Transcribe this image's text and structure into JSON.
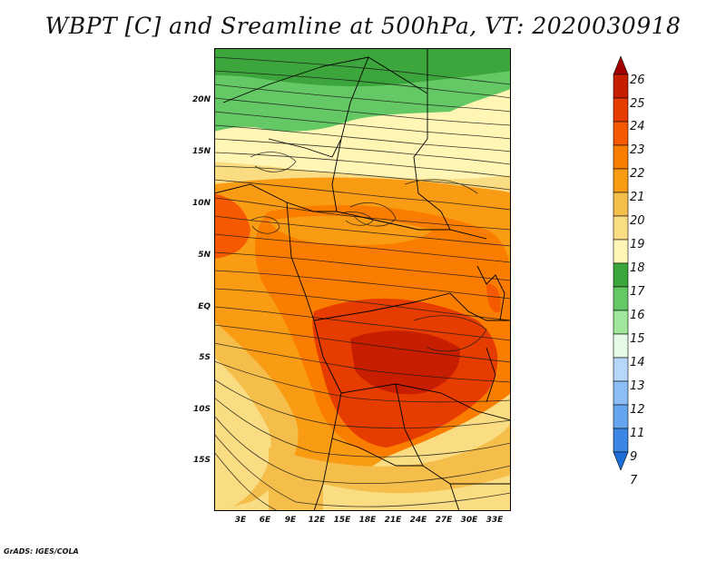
{
  "title": "WBPT [C] and Sreamline at 500hPa, VT: 2020030918",
  "credit": "GrADS: IGES/COLA",
  "axes": {
    "lat_labels": [
      "20N",
      "15N",
      "10N",
      "5N",
      "EQ",
      "5S",
      "10S",
      "15S"
    ],
    "lon_labels": [
      "3E",
      "6E",
      "9E",
      "12E",
      "15E",
      "18E",
      "21E",
      "24E",
      "27E",
      "30E",
      "33E"
    ]
  },
  "colorbar": {
    "labels": [
      "26",
      "25",
      "24",
      "23",
      "22",
      "21",
      "20",
      "19",
      "18",
      "17",
      "16",
      "15",
      "14",
      "13",
      "12",
      "11",
      "9",
      "7"
    ],
    "colors": [
      "#a50000",
      "#c81e00",
      "#e63c00",
      "#f55a00",
      "#fa7d00",
      "#fa9b14",
      "#f5be4b",
      "#fadc82",
      "#fff5b4",
      "#3ca53c",
      "#64c864",
      "#a0e69b",
      "#e6fae6",
      "#b4d7fa",
      "#8cbef5",
      "#64a5f0",
      "#3c87e6",
      "#1e6ed7"
    ]
  }
}
